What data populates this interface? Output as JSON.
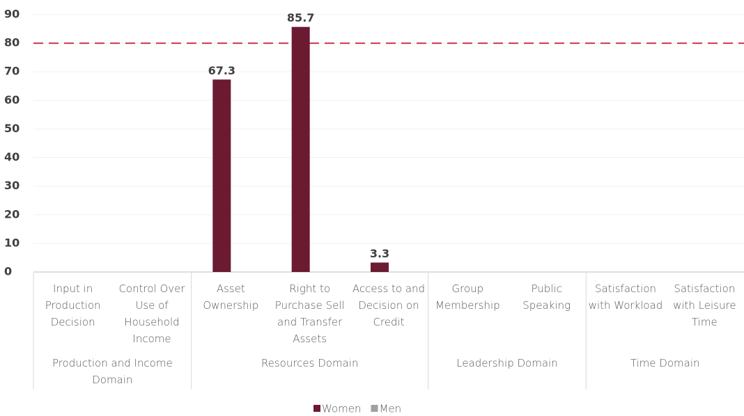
{
  "chart_data": {
    "type": "bar",
    "categories": [
      "Input in Production Decision",
      "Control Over Use of Household Income",
      "Asset Ownership",
      "Right to Purchase Sell and Transfer Assets",
      "Access to and Decision on Credit",
      "Group Membership",
      "Public Speaking",
      "Satisfaction with Workload",
      "Satisfaction with Leisure Time"
    ],
    "groups": [
      {
        "label": "Production and Income Domain",
        "span": 2
      },
      {
        "label": "Resources Domain",
        "span": 3
      },
      {
        "label": "Leadership Domain",
        "span": 2
      },
      {
        "label": "Time Domain",
        "span": 2
      }
    ],
    "series": [
      {
        "name": "Women",
        "color": "#6b1a32",
        "values": [
          null,
          null,
          67.3,
          85.7,
          3.3,
          null,
          null,
          null,
          null
        ]
      },
      {
        "name": "Men",
        "color": "#a0a0a0",
        "values": [
          null,
          null,
          null,
          null,
          null,
          null,
          null,
          null,
          null
        ]
      }
    ],
    "reference_line": {
      "value": 80,
      "color": "#d0344e"
    },
    "ylim": [
      0,
      90
    ],
    "yticks": [
      0,
      10,
      20,
      30,
      40,
      50,
      60,
      70,
      80,
      90
    ],
    "grid": true,
    "legend": "bottom"
  }
}
